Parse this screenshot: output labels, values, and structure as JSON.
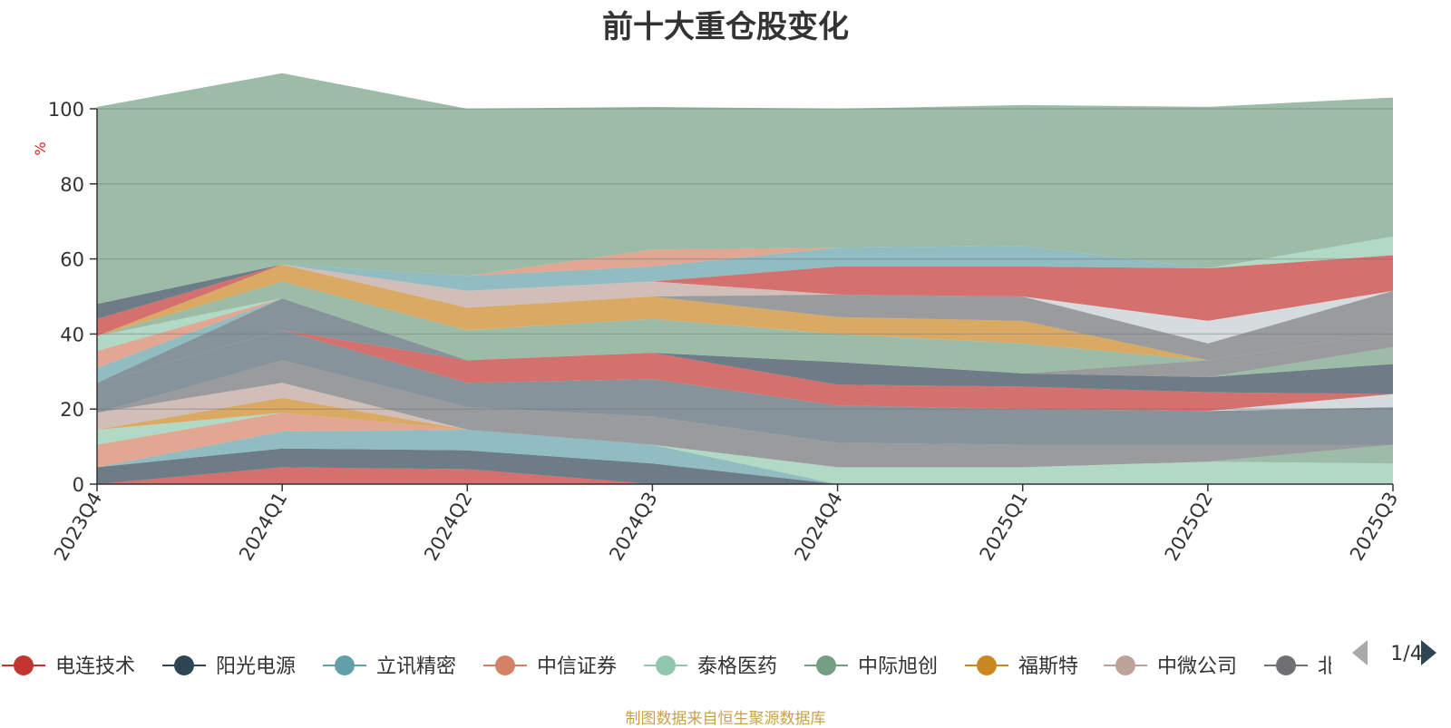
{
  "chart_data": {
    "type": "area",
    "title": "前十大重仓股变化",
    "ylabel": "%",
    "ylim": [
      0,
      100
    ],
    "yticks": [
      0,
      20,
      40,
      60,
      80,
      100
    ],
    "grid": true,
    "categories": [
      "2023Q4",
      "2024Q1",
      "2024Q2",
      "2024Q3",
      "2024Q4",
      "2025Q1",
      "2025Q2",
      "2025Q3"
    ],
    "series": [
      {
        "name": "电连技术",
        "color": "#c23531",
        "values": [
          0,
          4.5,
          4,
          0,
          0,
          0,
          0,
          0
        ]
      },
      {
        "name": "阳光电源",
        "color": "#2f4554",
        "values": [
          4.5,
          5,
          5,
          5.5,
          0,
          0,
          0,
          0
        ]
      },
      {
        "name": "立讯精密",
        "color": "#61a0a8",
        "values": [
          0,
          4.5,
          5.5,
          5,
          0,
          0,
          0,
          0
        ]
      },
      {
        "name": "中信证券",
        "color": "#d48265",
        "values": [
          6,
          5,
          0,
          0,
          0,
          0,
          0,
          0
        ]
      },
      {
        "name": "泰格医药",
        "color": "#91c7ae",
        "values": [
          4,
          0,
          0,
          0,
          4.5,
          4.5,
          6,
          5.5
        ]
      },
      {
        "name": "中际旭创",
        "color": "#749f83",
        "values": [
          0,
          0,
          0,
          0,
          0,
          0,
          0,
          5
        ]
      },
      {
        "name": "福斯特",
        "color": "#ca8622",
        "values": [
          0,
          4,
          0,
          0,
          0,
          0,
          0,
          0
        ]
      },
      {
        "name": "中微公司",
        "color": "#bda29a",
        "values": [
          4.5,
          4,
          0,
          0,
          0,
          0,
          0,
          0
        ]
      },
      {
        "name": "北方华创",
        "color": "#6e7074",
        "values": [
          0,
          6,
          6,
          7.5,
          6.5,
          6,
          4.5,
          0
        ]
      },
      {
        "name": "",
        "color": "#546570",
        "values": [
          8,
          8,
          6.5,
          10,
          10,
          9.5,
          9,
          10
        ]
      },
      {
        "name": "",
        "color": "#c4ccd3",
        "values": [
          0,
          0,
          0,
          0,
          0,
          0,
          0,
          3.5
        ]
      },
      {
        "name": "",
        "color": "#c23531",
        "values": [
          0,
          0,
          6,
          7,
          5.5,
          6,
          5,
          0
        ]
      },
      {
        "name": "",
        "color": "#2f4554",
        "values": [
          0,
          0,
          0,
          0,
          6,
          3.5,
          4,
          8
        ]
      },
      {
        "name": "",
        "color": "#749f83",
        "values": [
          0,
          0,
          0,
          0,
          0,
          0,
          0,
          4.5
        ]
      },
      {
        "name": "",
        "color": "#6e7074",
        "values": [
          0,
          0,
          0,
          0,
          0,
          0,
          4.5,
          4
        ]
      },
      {
        "name": "",
        "color": "#546570",
        "values": [
          0,
          8.5,
          0,
          0,
          0,
          0,
          0,
          0
        ]
      },
      {
        "name": "",
        "color": "#61a0a8",
        "values": [
          4,
          0,
          0,
          0,
          0,
          0,
          0,
          0
        ]
      },
      {
        "name": "",
        "color": "#d48265",
        "values": [
          4.5,
          0,
          0,
          0,
          0,
          0,
          0,
          0
        ]
      },
      {
        "name": "",
        "color": "#91c7ae",
        "values": [
          4,
          0,
          0,
          0,
          0,
          0,
          0,
          0
        ]
      },
      {
        "name": "",
        "color": "#749f83",
        "values": [
          0,
          4.5,
          8,
          9,
          7.5,
          8,
          0,
          0
        ]
      },
      {
        "name": "",
        "color": "#ca8622",
        "values": [
          0,
          4.5,
          6,
          6,
          4.5,
          6,
          0,
          0
        ]
      },
      {
        "name": "",
        "color": "#c23531",
        "values": [
          4.5,
          0,
          0,
          0,
          0,
          0,
          0,
          0
        ]
      },
      {
        "name": "",
        "color": "#6e7074",
        "values": [
          0,
          0,
          0,
          0,
          6,
          6.5,
          4.5,
          11
        ]
      },
      {
        "name": "",
        "color": "#bda29a",
        "values": [
          0,
          0,
          4.5,
          4,
          0,
          0,
          0,
          0
        ]
      },
      {
        "name": "",
        "color": "#c4ccd3",
        "values": [
          0,
          0,
          0,
          0,
          0,
          0,
          6,
          0
        ]
      },
      {
        "name": "",
        "color": "#c23531",
        "values": [
          0,
          0,
          0,
          0,
          7.5,
          8,
          14,
          9.5
        ]
      },
      {
        "name": "",
        "color": "#2f4554",
        "values": [
          4,
          0,
          0,
          0,
          0,
          0,
          0,
          0
        ]
      },
      {
        "name": "",
        "color": "#61a0a8",
        "values": [
          0,
          0,
          4,
          4,
          5,
          5.5,
          0,
          0
        ]
      },
      {
        "name": "",
        "color": "#d48265",
        "values": [
          0,
          0,
          0,
          4.5,
          0,
          0,
          0,
          0
        ]
      },
      {
        "name": "",
        "color": "#91c7ae",
        "values": [
          0,
          0,
          0,
          0,
          0,
          0,
          0,
          5
        ]
      },
      {
        "name": "",
        "color": "#749f83",
        "values": [
          52.5,
          51,
          44.5,
          38,
          37,
          37.5,
          43,
          37
        ]
      }
    ],
    "legend": {
      "position": "bottom",
      "items": [
        {
          "label": "电连技术",
          "color": "#c23531"
        },
        {
          "label": "阳光电源",
          "color": "#2f4554"
        },
        {
          "label": "立讯精密",
          "color": "#61a0a8"
        },
        {
          "label": "中信证券",
          "color": "#d48265"
        },
        {
          "label": "泰格医药",
          "color": "#91c7ae"
        },
        {
          "label": "中际旭创",
          "color": "#749f83"
        },
        {
          "label": "福斯特",
          "color": "#ca8622"
        },
        {
          "label": "中微公司",
          "color": "#bda29a"
        },
        {
          "label": "北方",
          "color": "#6e7074"
        }
      ],
      "page": "1/4"
    }
  },
  "source_note": "制图数据来自恒生聚源数据库",
  "colors": {
    "axis": "#333333",
    "grid": "#6e7074",
    "pager_active": "#2f4554",
    "pager_inactive": "#aaaaaa"
  }
}
